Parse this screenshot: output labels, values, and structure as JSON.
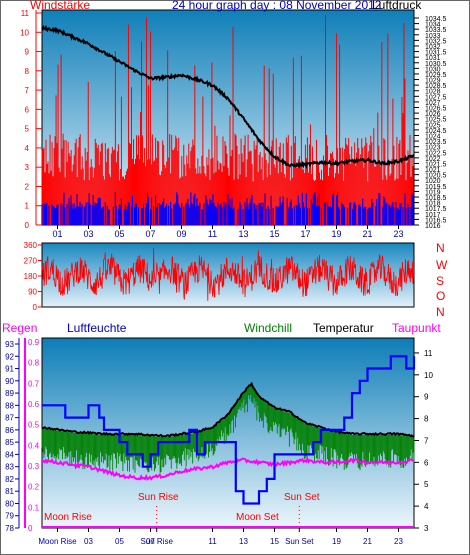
{
  "header": {
    "left_label": "Windstärke",
    "title": "24 hour graph day : 08 November 2012",
    "right_label": "Luftdruck"
  },
  "middle": {
    "compass": [
      "N",
      "W",
      "S",
      "O",
      "N"
    ]
  },
  "bottom_legend": {
    "rain": "Regen",
    "humidity": "Luftfeuchte",
    "windchill": "Windchill",
    "temperature": "Temperatur",
    "dewpoint": "Taupunkt"
  },
  "annotations": {
    "sun_rise": "Sun Rise",
    "sun_set": "Sun Set",
    "moon_rise": "Moon Rise",
    "moon_set": "Moon Set"
  },
  "colors": {
    "wind_gust": "#ff0000",
    "wind_avg": "#0000ff",
    "pressure": "#000000",
    "wind_dir": "#ff0000",
    "windchill": "#008000",
    "temperature": "#000000",
    "humidity": "#0000ff",
    "dewpoint": "#ff00ff",
    "rain_axis": "#ff00ff"
  },
  "chart_data": [
    {
      "type": "bar",
      "name_left": "Windstärke",
      "name_right": "Luftdruck",
      "x_tick_labels": [
        "01",
        "03",
        "05",
        "07",
        "09",
        "11",
        "13",
        "15",
        "17",
        "19",
        "21",
        "23"
      ],
      "y_left_ticks": [
        "0",
        "1",
        "2",
        "3",
        "4",
        "5",
        "6",
        "7",
        "8",
        "9",
        "10",
        "11"
      ],
      "y_left_range": [
        0,
        11
      ],
      "y_right_ticks": [
        "1016",
        "1016.5",
        "1017",
        "1017.5",
        "1018",
        "1018.5",
        "1019",
        "1019.5",
        "1020",
        "1020.5",
        "1021",
        "1021.5",
        "1022",
        "1022.5",
        "1023",
        "1023.5",
        "1024",
        "1024.5",
        "1025",
        "1025.5",
        "1026",
        "1026.5",
        "1027",
        "1027.5",
        "1028",
        "1028.5",
        "1029",
        "1029.5",
        "1030",
        "1030.5",
        "1031",
        "1031.5",
        "1032",
        "1032.5",
        "1033",
        "1033.5",
        "1034",
        "1034.5"
      ],
      "y_right_range": [
        1016,
        1034.5
      ],
      "x_range": [
        0,
        24
      ],
      "pressure_series": {
        "x": [
          0,
          1,
          2,
          3,
          4,
          5,
          6,
          7,
          8,
          9,
          10,
          11,
          12,
          13,
          14,
          15,
          16,
          17,
          18,
          19,
          20,
          21,
          22,
          23,
          24
        ],
        "y": [
          1033.6,
          1033.4,
          1032.8,
          1032.2,
          1031.4,
          1030.6,
          1029.8,
          1029.1,
          1029.2,
          1029.4,
          1029.0,
          1028.5,
          1027.3,
          1025.5,
          1023.6,
          1022.1,
          1021.3,
          1021.4,
          1021.6,
          1021.5,
          1021.7,
          1021.8,
          1021.5,
          1021.7,
          1022.2
        ]
      },
      "wind_avg_typical": 1,
      "wind_gust_typical": 3.5,
      "wind_gust_max": 11
    },
    {
      "type": "line",
      "name": "Wind direction",
      "y_ticks": [
        "0",
        "90",
        "180",
        "270",
        "360"
      ],
      "y_range": [
        0,
        360
      ]
    },
    {
      "type": "line",
      "y_left_rain_ticks": [
        "0",
        "0.1",
        "0.2",
        "0.3",
        "0.4",
        "0.5",
        "0.6",
        "0.7",
        "0.8",
        "0.9"
      ],
      "y_left_humidity_ticks": [
        "78",
        "79",
        "80",
        "81",
        "82",
        "83",
        "84",
        "85",
        "86",
        "87",
        "88",
        "89",
        "90",
        "91",
        "92",
        "93"
      ],
      "y_right_temp_ticks": [
        "3",
        "4",
        "5",
        "6",
        "7",
        "8",
        "9",
        "10",
        "11"
      ],
      "x_tick_labels": [
        "Moon Rise",
        "03",
        "05",
        "07",
        "Sun Rise",
        "11",
        "13",
        "15",
        "Sun Set",
        "19",
        "21",
        "23"
      ],
      "humidity_range": [
        78,
        93
      ],
      "temp_range": [
        3,
        11.5
      ],
      "x_range": [
        0,
        24
      ],
      "sun_rise_hour": 7.4,
      "sun_set_hour": 16.6,
      "humidity": {
        "x": [
          0,
          1,
          1.5,
          2.5,
          3,
          3.7,
          4,
          5,
          5.5,
          6,
          6.5,
          7,
          7.5,
          9,
          9.5,
          10,
          10.5,
          11,
          12,
          12.5,
          13,
          13.5,
          14,
          14.5,
          15,
          16,
          17,
          17.5,
          18,
          19,
          19.5,
          20,
          20.5,
          21,
          22,
          22.5,
          23,
          23.5,
          24
        ],
        "y": [
          88,
          88,
          87,
          87,
          88,
          87,
          86,
          85,
          84,
          84,
          83,
          84,
          85,
          85,
          86,
          84,
          85,
          85,
          85,
          81,
          80,
          80,
          81,
          82,
          84,
          84,
          84,
          85,
          86,
          86,
          87,
          89,
          90,
          91,
          91,
          92,
          92,
          91,
          92
        ]
      },
      "temperature": {
        "x": [
          0,
          2,
          4,
          6,
          8,
          10,
          11,
          12,
          13,
          13.5,
          14,
          15,
          16,
          17,
          18,
          19,
          20,
          21,
          22,
          23,
          24
        ],
        "y": [
          7.6,
          7.4,
          7.3,
          7.3,
          7.2,
          7.4,
          7.6,
          8.2,
          9.2,
          9.6,
          9.0,
          8.5,
          8.3,
          7.8,
          7.6,
          7.4,
          7.3,
          7.3,
          7.3,
          7.3,
          7.2
        ]
      },
      "windchill": {
        "x": [
          0,
          2,
          4,
          6,
          8,
          10,
          11,
          12,
          13,
          13.5,
          14,
          15,
          16,
          17,
          18,
          19,
          20,
          21,
          22,
          23,
          24
        ],
        "y": [
          7.0,
          6.6,
          6.5,
          6.4,
          6.4,
          6.8,
          7.0,
          7.8,
          8.9,
          9.3,
          8.6,
          7.9,
          7.6,
          7.0,
          6.8,
          6.6,
          6.5,
          6.5,
          6.6,
          6.6,
          6.6
        ]
      },
      "dewpoint": {
        "x": [
          0,
          1,
          2,
          3,
          4,
          5,
          6,
          7,
          8,
          9,
          10,
          11,
          12,
          13,
          14,
          15,
          16,
          17,
          18,
          19,
          20,
          21,
          22,
          23,
          24
        ],
        "y": [
          6.1,
          6.0,
          5.9,
          5.8,
          5.6,
          5.4,
          5.3,
          5.3,
          5.4,
          5.6,
          5.7,
          5.8,
          6.0,
          6.1,
          6.0,
          5.9,
          6.0,
          6.1,
          6.0,
          6.0,
          6.1,
          6.0,
          6.0,
          6.0,
          6.1
        ]
      },
      "rain": {
        "x": [
          0,
          24
        ],
        "y": [
          0,
          0
        ]
      }
    }
  ]
}
